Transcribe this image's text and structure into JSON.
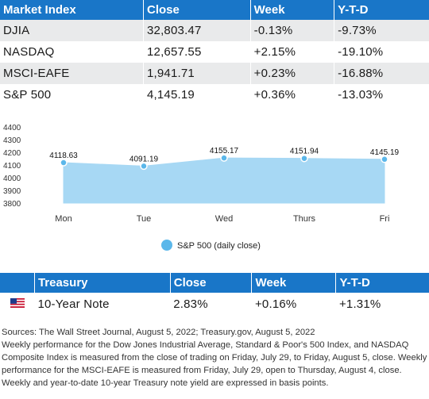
{
  "market_table": {
    "headers": [
      "Market Index",
      "Close",
      "Week",
      "Y-T-D"
    ],
    "rows": [
      [
        "DJIA",
        "32,803.47",
        "-0.13%",
        "-9.73%"
      ],
      [
        "NASDAQ",
        "12,657.55",
        "+2.15%",
        "-19.10%"
      ],
      [
        "MSCI-EAFE",
        "1,941.71",
        "+0.23%",
        "-16.88%"
      ],
      [
        "S&P 500",
        "4,145.19",
        "+0.36%",
        "-13.03%"
      ]
    ]
  },
  "chart_data": {
    "type": "area",
    "categories": [
      "Mon",
      "Tue",
      "Wed",
      "Thurs",
      "Fri"
    ],
    "series": [
      {
        "name": "S&P 500 (daily close)",
        "values": [
          4118.63,
          4091.19,
          4155.17,
          4151.94,
          4145.19
        ]
      }
    ],
    "data_labels": [
      "4118.63",
      "4091.19",
      "4155.17",
      "4151.94",
      "4145.19"
    ],
    "ylim": [
      3800,
      4400
    ],
    "yticks": [
      3800,
      3900,
      4000,
      4100,
      4200,
      4300,
      4400
    ],
    "legend_position": "bottom",
    "colors": {
      "fill": "#a7d8f4",
      "marker": "#5bb7ea"
    }
  },
  "treasury_table": {
    "headers": [
      "",
      "Treasury",
      "Close",
      "Week",
      "Y-T-D"
    ],
    "row": {
      "flag_icon": "us-flag-icon",
      "name": "10-Year Note",
      "close": "2.83%",
      "week": "+0.16%",
      "ytd": "+1.31%"
    }
  },
  "notes": [
    "Sources: The Wall Street Journal, August 5, 2022; Treasury.gov, August 5, 2022",
    "Weekly performance for the Dow Jones Industrial Average, Standard & Poor's 500 Index, and NASDAQ Composite Index is measured from the close of trading on Friday, July 29, to Friday, August 5, close. Weekly performance for the MSCI-EAFE is measured from Friday, July 29, open to Thursday, August 4, close. Weekly and year-to-date 10-year Treasury note yield are expressed in basis points."
  ]
}
